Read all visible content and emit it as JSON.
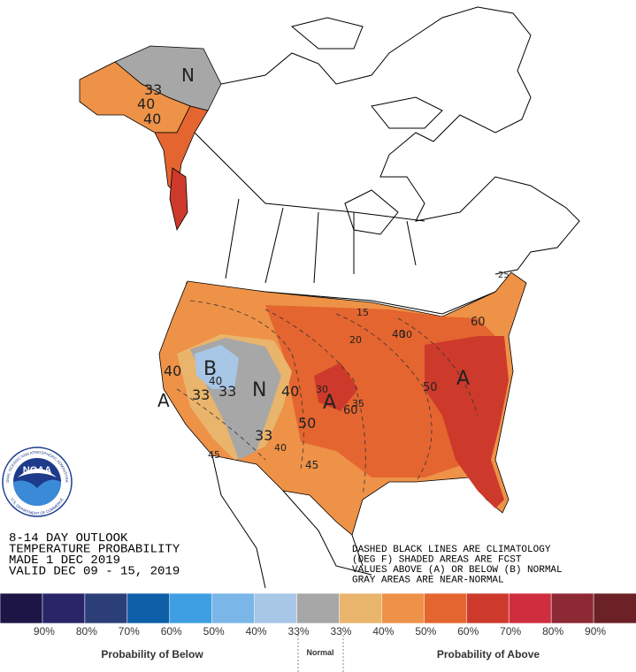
{
  "title_block": {
    "lines": [
      "8-14 DAY OUTLOOK",
      "TEMPERATURE PROBABILITY",
      "MADE  1 DEC 2019",
      "VALID  DEC 09 - 15, 2019"
    ]
  },
  "notes": {
    "lines": [
      "DASHED BLACK LINES ARE CLIMATOLOGY",
      "(DEG F) SHADED AREAS ARE FCST",
      "VALUES ABOVE (A) OR BELOW (B) NORMAL",
      "GRAY AREAS ARE NEAR-NORMAL"
    ]
  },
  "logo": {
    "text": "NOAA",
    "ring_top": "NATIONAL OCEANIC AND ATMOSPHERIC ADMINISTRATION",
    "ring_bottom": "U.S. DEPARTMENT OF COMMERCE"
  },
  "map_labels": {
    "alaska": [
      "N",
      "33",
      "40",
      "40"
    ],
    "west": [
      "B",
      "40",
      "33",
      "33",
      "N",
      "40",
      "40",
      "A",
      "33",
      "40",
      "45"
    ],
    "central": [
      "A",
      "50",
      "60",
      "30",
      "35",
      "40",
      "15",
      "20",
      "45"
    ],
    "east": [
      "A",
      "50",
      "60",
      "30",
      "25"
    ]
  },
  "legend": {
    "colors": [
      "#1c1545",
      "#2a2568",
      "#2d3f78",
      "#0d5fa8",
      "#3d9fe2",
      "#7ab6e8",
      "#a8c6e6",
      "#a7a7a7",
      "#e9b46b",
      "#ee9248",
      "#e4652f",
      "#cd3a2b",
      "#cf2e3e",
      "#8d2934",
      "#6b2125"
    ],
    "labels": [
      "90%",
      "80%",
      "70%",
      "60%",
      "50%",
      "40%",
      "33%",
      "33%",
      "40%",
      "50%",
      "60%",
      "70%",
      "80%",
      "90%"
    ],
    "below": "Probability of Below",
    "normal": "Normal",
    "above": "Probability of Above"
  }
}
